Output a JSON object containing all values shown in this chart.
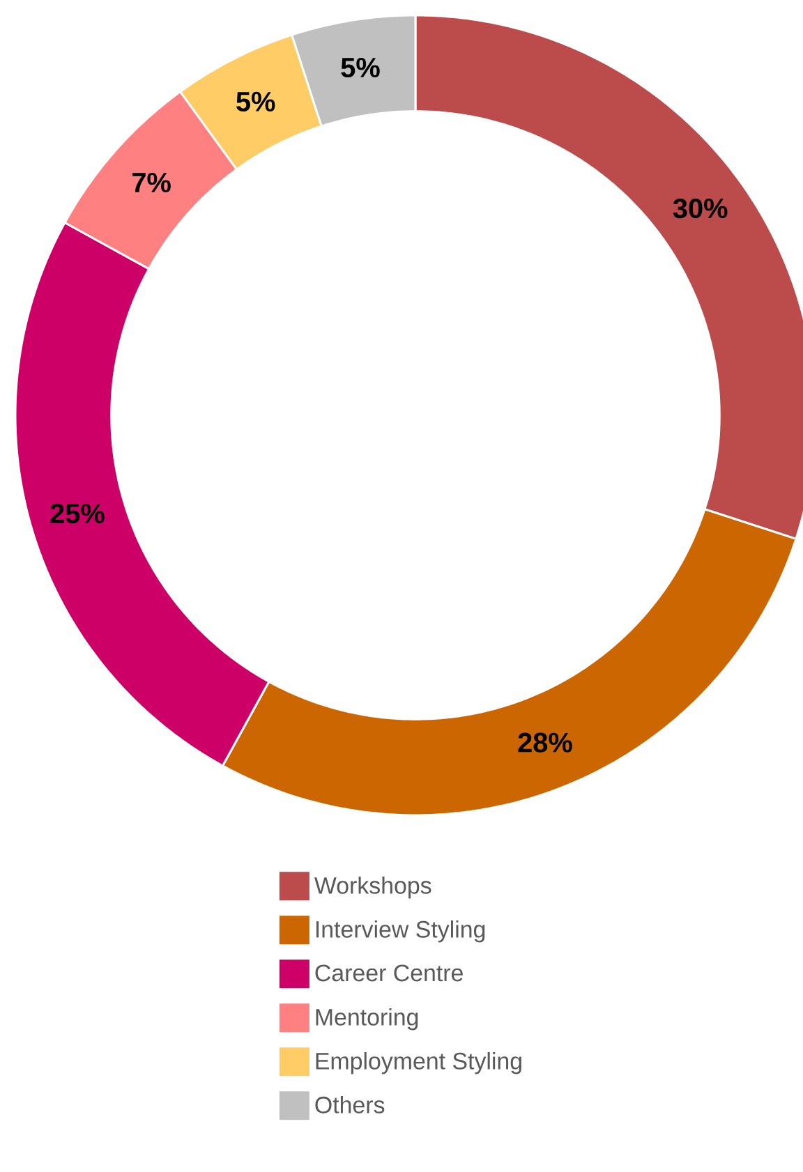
{
  "chart_data": {
    "type": "donut",
    "categories": [
      "Workshops",
      "Interview Styling",
      "Career Centre",
      "Mentoring",
      "Employment Styling",
      "Others"
    ],
    "values": [
      30,
      28,
      25,
      7,
      5,
      5
    ],
    "value_labels": [
      "30%",
      "28%",
      "25%",
      "7%",
      "5%",
      "5%"
    ],
    "colors": [
      "#bc4b4b",
      "#cc6600",
      "#cc0066",
      "#ff8080",
      "#ffcc66",
      "#c0c0c0"
    ],
    "legend": "bottom"
  }
}
